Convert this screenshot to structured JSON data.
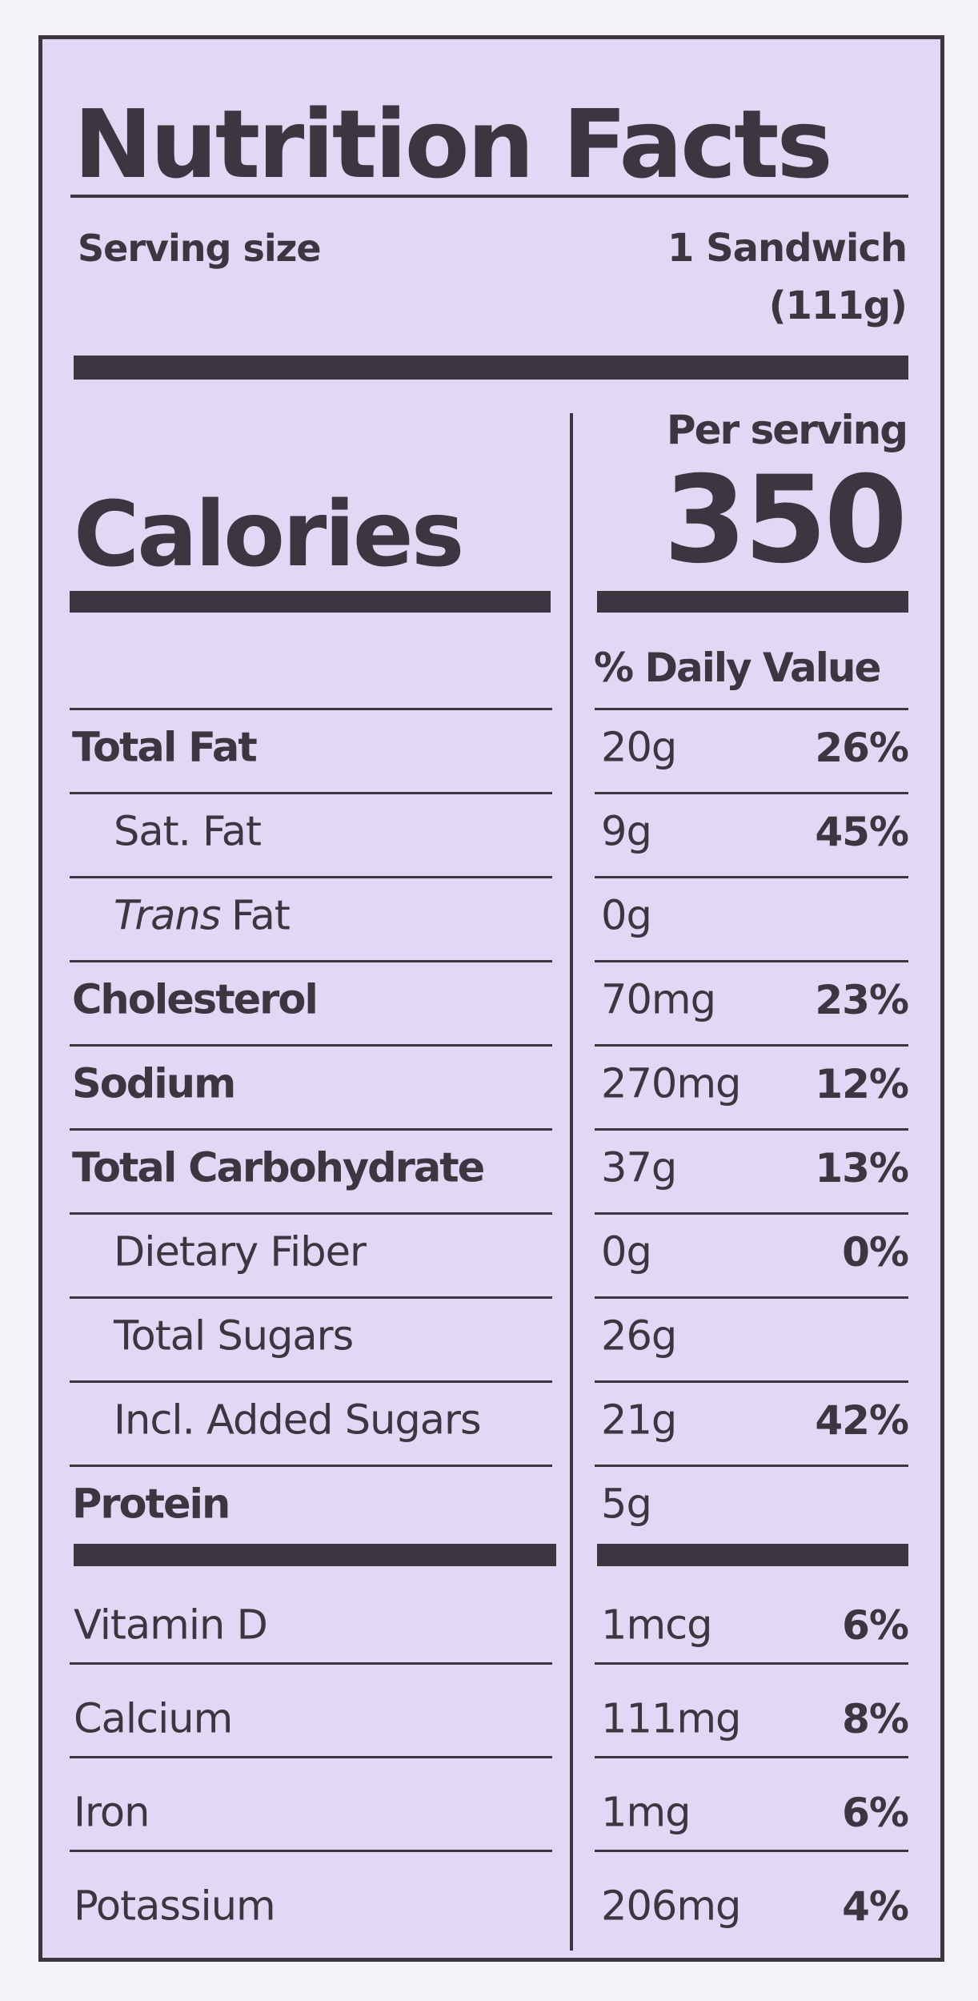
{
  "title": "Nutrition Facts",
  "serving": {
    "label": "Serving size",
    "amount": "1 Sandwich",
    "weight": "(111g)"
  },
  "calories": {
    "label": "Calories",
    "per_serving": "Per serving",
    "value": "350"
  },
  "daily_value_header": "% Daily Value",
  "rows": [
    {
      "name": "Total Fat",
      "bold": true,
      "amount": "20g",
      "dv": "26%"
    },
    {
      "name": "Sat. Fat",
      "indent": true,
      "amount": "9g",
      "dv": "45%"
    },
    {
      "italic": "Trans",
      "name": "Fat",
      "indent": true,
      "amount": "0g"
    },
    {
      "name": "Cholesterol",
      "bold": true,
      "amount": "70mg",
      "dv": "23%"
    },
    {
      "name": "Sodium",
      "bold": true,
      "amount": "270mg",
      "dv": "12%"
    },
    {
      "name": "Total Carbohydrate",
      "bold": true,
      "amount": "37g",
      "dv": "13%"
    },
    {
      "name": "Dietary Fiber",
      "indent": true,
      "amount": "0g",
      "dv": "0%"
    },
    {
      "name": "Total Sugars",
      "indent": true,
      "amount": "26g"
    },
    {
      "name": "Incl. Added Sugars",
      "indent": true,
      "amount": "21g",
      "dv": "42%"
    },
    {
      "name": "Protein",
      "bold": true,
      "amount": "5g"
    }
  ],
  "vitamins": [
    {
      "name": "Vitamin D",
      "amount": "1mcg",
      "dv": "6%"
    },
    {
      "name": "Calcium",
      "amount": "111mg",
      "dv": "8%"
    },
    {
      "name": "Iron",
      "amount": "1mg",
      "dv": "6%"
    },
    {
      "name": "Potassium",
      "amount": "206mg",
      "dv": "4%"
    }
  ]
}
